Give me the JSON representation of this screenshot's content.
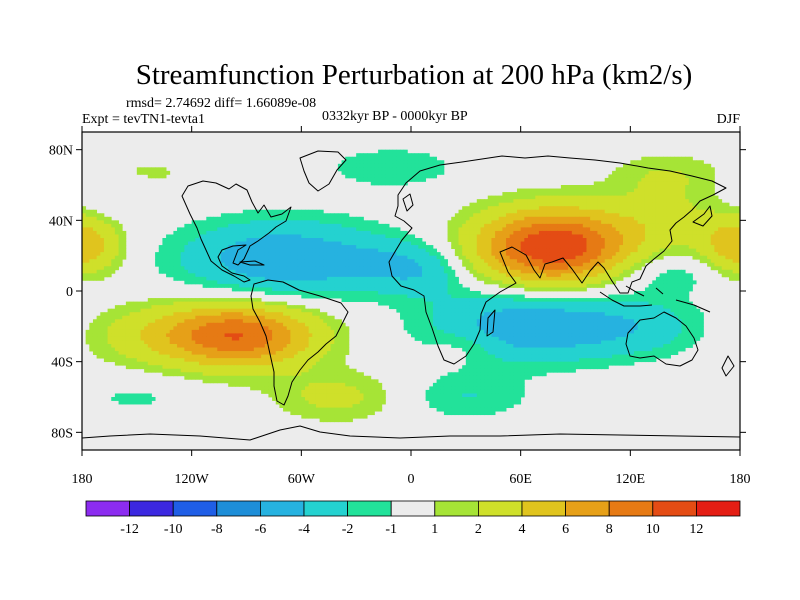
{
  "chart_data": {
    "type": "heatmap",
    "title": "Streamfunction Perturbation at 200 hPa (km2/s)",
    "stats": "rmsd= 2.74692 diff= 1.66089e-08",
    "experiment": "Expt = tevTN1-tevta1",
    "period": "0332kyr BP - 0000kyr BP",
    "season": "DJF",
    "xlim": [
      -180,
      180
    ],
    "ylim": [
      -90,
      90
    ],
    "x_ticks": [
      {
        "value": -180,
        "label": "180"
      },
      {
        "value": -120,
        "label": "120W"
      },
      {
        "value": -60,
        "label": "60W"
      },
      {
        "value": 0,
        "label": "0"
      },
      {
        "value": 60,
        "label": "60E"
      },
      {
        "value": 120,
        "label": "120E"
      },
      {
        "value": 180,
        "label": "180"
      }
    ],
    "y_ticks": [
      {
        "value": 80,
        "label": "80N"
      },
      {
        "value": 40,
        "label": "40N"
      },
      {
        "value": 0,
        "label": "0"
      },
      {
        "value": -40,
        "label": "40S"
      },
      {
        "value": -80,
        "label": "80S"
      }
    ],
    "colorbar": {
      "colors": [
        "#8c2cf0",
        "#3c28e0",
        "#1f5ee6",
        "#1e8ed8",
        "#26b2e0",
        "#24d2d0",
        "#22e29a",
        "#ececec",
        "#a6e436",
        "#cfe02a",
        "#e0c41e",
        "#e6a018",
        "#e67a14",
        "#e44c14",
        "#e41e14"
      ],
      "labels": [
        {
          "after_index": 0,
          "text": "-12"
        },
        {
          "after_index": 1,
          "text": "-10"
        },
        {
          "after_index": 2,
          "text": "-8"
        },
        {
          "after_index": 3,
          "text": "-6"
        },
        {
          "after_index": 4,
          "text": "-4"
        },
        {
          "after_index": 5,
          "text": "-2"
        },
        {
          "after_index": 6,
          "text": "-1"
        },
        {
          "after_index": 7,
          "text": "1"
        },
        {
          "after_index": 8,
          "text": "2"
        },
        {
          "after_index": 9,
          "text": "4"
        },
        {
          "after_index": 10,
          "text": "6"
        },
        {
          "after_index": 11,
          "text": "8"
        },
        {
          "after_index": 12,
          "text": "10"
        },
        {
          "after_index": 13,
          "text": "12"
        }
      ],
      "levels": [
        -12,
        -10,
        -8,
        -6,
        -4,
        -2,
        -1,
        1,
        2,
        4,
        6,
        8,
        10,
        12
      ]
    },
    "field_centers": [
      {
        "lon": 78,
        "lat": 25,
        "amp": 12,
        "slon": 30,
        "slat": 15
      },
      {
        "lon": -95,
        "lat": -25,
        "amp": 10,
        "slon": 30,
        "slat": 13
      },
      {
        "lon": -175,
        "lat": 25,
        "amp": 3,
        "slon": 14,
        "slat": 12
      },
      {
        "lon": 175,
        "lat": 25,
        "amp": 3,
        "slon": 14,
        "slat": 12
      },
      {
        "lon": 140,
        "lat": 40,
        "amp": 2,
        "slon": 25,
        "slat": 12
      },
      {
        "lon": 140,
        "lat": 65,
        "amp": 2,
        "slon": 22,
        "slat": 10
      },
      {
        "lon": -40,
        "lat": -60,
        "amp": 2.5,
        "slon": 25,
        "slat": 10
      },
      {
        "lon": 30,
        "lat": -30,
        "amp": 1.5,
        "slon": 14,
        "slat": 7
      },
      {
        "lon": -145,
        "lat": 65,
        "amp": 1.5,
        "slon": 20,
        "slat": 8
      },
      {
        "lon": -150,
        "lat": -25,
        "amp": 2,
        "slon": 25,
        "slat": 12
      },
      {
        "lon": -70,
        "lat": 18,
        "amp": -6,
        "slon": 38,
        "slat": 15
      },
      {
        "lon": 60,
        "lat": -20,
        "amp": -5.5,
        "slon": 35,
        "slat": 14
      },
      {
        "lon": 120,
        "lat": -20,
        "amp": -3,
        "slon": 30,
        "slat": 12
      },
      {
        "lon": -10,
        "lat": 70,
        "amp": -2,
        "slon": 25,
        "slat": 8
      },
      {
        "lon": -10,
        "lat": 15,
        "amp": -2.5,
        "slon": 20,
        "slat": 10
      },
      {
        "lon": 10,
        "lat": 10,
        "amp": -2,
        "slon": 15,
        "slat": 10
      },
      {
        "lon": 140,
        "lat": 10,
        "amp": -2,
        "slon": 25,
        "slat": 8
      },
      {
        "lon": -160,
        "lat": 55,
        "amp": -1.5,
        "slon": 20,
        "slat": 8
      },
      {
        "lon": 30,
        "lat": -60,
        "amp": -2,
        "slon": 25,
        "slat": 9
      },
      {
        "lon": -150,
        "lat": -60,
        "amp": -1.2,
        "slon": 25,
        "slat": 8
      }
    ]
  }
}
